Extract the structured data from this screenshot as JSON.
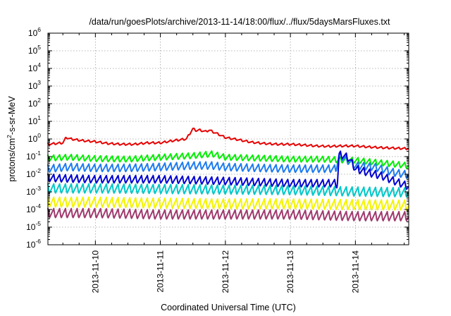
{
  "chart_data": {
    "type": "line",
    "title": "/data/run/goesPlots/archive/2013-11-14/18:00/flux/../flux/5daysMarsFluxes.txt",
    "xlabel": "Coordinated Universal Time (UTC)",
    "ylabel": {
      "pre": "protons/cm",
      "sup": "2",
      "post": "-s-sr-MeV"
    },
    "xlim": [
      9.27,
      14.82
    ],
    "xunit": "day of 2013-11",
    "yscale": "log",
    "ylim_exp": [
      -6,
      6
    ],
    "yticks": [
      {
        "base": "10",
        "exp": "-6",
        "value": -6
      },
      {
        "base": "10",
        "exp": "-5",
        "value": -5
      },
      {
        "base": "10",
        "exp": "-4",
        "value": -4
      },
      {
        "base": "10",
        "exp": "-3",
        "value": -3
      },
      {
        "base": "10",
        "exp": "-2",
        "value": -2
      },
      {
        "base": "10",
        "exp": "-1",
        "value": -1
      },
      {
        "base": "10",
        "exp": "0",
        "value": 0
      },
      {
        "base": "10",
        "exp": "1",
        "value": 1
      },
      {
        "base": "10",
        "exp": "2",
        "value": 2
      },
      {
        "base": "10",
        "exp": "3",
        "value": 3
      },
      {
        "base": "10",
        "exp": "4",
        "value": 4
      },
      {
        "base": "10",
        "exp": "5",
        "value": 5
      },
      {
        "base": "10",
        "exp": "6",
        "value": 6
      }
    ],
    "xticks": [
      {
        "label": "2013-11-10",
        "value": 10
      },
      {
        "label": "2013-11-11",
        "value": 11
      },
      {
        "label": "2013-11-12",
        "value": 12
      },
      {
        "label": "2013-11-13",
        "value": 13
      },
      {
        "label": "2013-11-14",
        "value": 14
      }
    ],
    "grid": true,
    "series": [
      {
        "color": "#e60000",
        "x": [
          9.27,
          9.5,
          9.55,
          9.62,
          9.8,
          10.0,
          10.2,
          10.4,
          10.6,
          10.8,
          11.0,
          11.2,
          11.4,
          11.5,
          11.55,
          11.6,
          11.7,
          11.75,
          11.8,
          11.9,
          12.0,
          12.2,
          12.4,
          12.6,
          12.8,
          13.0,
          13.2,
          13.4,
          13.6,
          13.8,
          14.0,
          14.2,
          14.4,
          14.6,
          14.82
        ],
        "y": [
          0.5,
          0.6,
          1.2,
          1.0,
          0.8,
          0.7,
          0.55,
          0.5,
          0.5,
          0.6,
          0.6,
          0.8,
          1.0,
          3.8,
          3.0,
          3.2,
          2.6,
          3.2,
          2.6,
          1.8,
          1.2,
          0.9,
          0.65,
          0.55,
          0.5,
          0.5,
          0.45,
          0.4,
          0.38,
          0.4,
          0.4,
          0.35,
          0.32,
          0.3,
          0.28
        ]
      },
      {
        "color": "#00ee00",
        "x": [
          9.27,
          9.6,
          10.0,
          10.5,
          11.0,
          11.5,
          11.8,
          12.0,
          12.5,
          13.0,
          13.5,
          13.7,
          14.0,
          14.5,
          14.82
        ],
        "y": [
          0.08,
          0.09,
          0.075,
          0.07,
          0.09,
          0.11,
          0.14,
          0.09,
          0.08,
          0.07,
          0.07,
          0.065,
          0.06,
          0.04,
          0.03
        ]
      },
      {
        "color": "#1e7cf0",
        "x": [
          9.27,
          9.6,
          10.0,
          10.5,
          11.0,
          11.5,
          11.8,
          12.0,
          12.5,
          13.0,
          13.5,
          13.7,
          13.75,
          13.85,
          14.0,
          14.3,
          14.6,
          14.82
        ],
        "y": [
          0.02,
          0.025,
          0.022,
          0.022,
          0.025,
          0.03,
          0.03,
          0.025,
          0.022,
          0.02,
          0.02,
          0.02,
          0.12,
          0.07,
          0.03,
          0.025,
          0.012,
          0.009
        ]
      },
      {
        "color": "#0000d0",
        "x": [
          9.27,
          10.0,
          11.0,
          12.0,
          13.0,
          13.7,
          13.72,
          13.75,
          13.8,
          13.9,
          14.0,
          14.2,
          14.4,
          14.6,
          14.82
        ],
        "y": [
          0.006,
          0.005,
          0.005,
          0.004,
          0.003,
          0.003,
          0.0022,
          0.12,
          0.12,
          0.08,
          0.02,
          0.012,
          0.008,
          0.004,
          0.002
        ]
      },
      {
        "color": "#00c8c8",
        "x": [
          9.27,
          10.0,
          11.0,
          12.0,
          13.0,
          14.0,
          14.82
        ],
        "y": [
          0.0015,
          0.0015,
          0.0014,
          0.0013,
          0.0012,
          0.001,
          0.0009
        ]
      },
      {
        "color": "#f4f400",
        "x": [
          9.27,
          10.0,
          11.0,
          12.0,
          13.0,
          14.0,
          14.82
        ],
        "y": [
          0.00025,
          0.00025,
          0.00022,
          0.0002,
          0.0002,
          0.00018,
          0.00017
        ]
      },
      {
        "color": "#a03a6e",
        "x": [
          9.27,
          10.0,
          11.0,
          12.0,
          13.0,
          14.0,
          14.82
        ],
        "y": [
          6e-05,
          6e-05,
          5e-05,
          5e-05,
          5e-05,
          4e-05,
          4e-05
        ]
      }
    ],
    "sawtooth_period_days": 0.09
  }
}
